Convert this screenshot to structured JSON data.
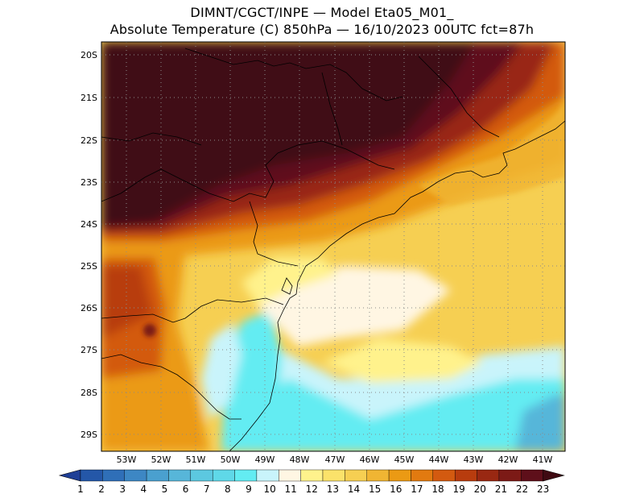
{
  "title_line1": "DIMNT/CGCT/INPE —  Model Eta05_M01_",
  "title_line2": "Absolute Temperature (C) 850hPa —  16/10/2023 00UTC fct=87h",
  "lat_labels": [
    "20S",
    "21S",
    "22S",
    "23S",
    "24S",
    "25S",
    "26S",
    "27S",
    "28S",
    "29S"
  ],
  "lon_labels": [
    "53W",
    "52W",
    "51W",
    "50W",
    "49W",
    "48W",
    "47W",
    "46W",
    "45W",
    "44W",
    "43W",
    "42W",
    "41W"
  ],
  "colorbar": {
    "labels": [
      "1",
      "2",
      "3",
      "4",
      "5",
      "6",
      "7",
      "8",
      "9",
      "10",
      "11",
      "12",
      "13",
      "14",
      "15",
      "16",
      "17",
      "18",
      "19",
      "20",
      "21",
      "22",
      "23"
    ],
    "colors": [
      "#1f3f96",
      "#2457a8",
      "#2f6fb8",
      "#3d87c4",
      "#4aa0cf",
      "#57b6d9",
      "#5cc8e0",
      "#5fd8e8",
      "#63ecf2",
      "#c9f4fb",
      "#fff6e3",
      "#fff28c",
      "#fbe26a",
      "#f6cf52",
      "#f0b533",
      "#eb9a14",
      "#e27a10",
      "#d35a10",
      "#b83c0e",
      "#992812",
      "#7c1a16",
      "#5e0f1a",
      "#3f0a12"
    ]
  }
}
